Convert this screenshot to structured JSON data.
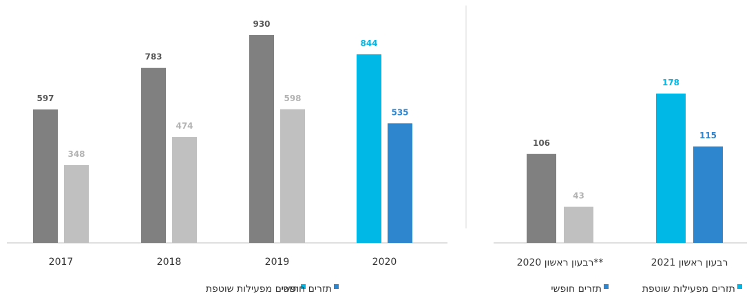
{
  "colors": {
    "dark_gray": "#808080",
    "light_gray": "#c0c0c0",
    "cyan": "#00b8e6",
    "blue": "#2e86cf",
    "axis": "#bfbfbf",
    "divider": "#d9d9d9",
    "label_dark": "#595959",
    "label_light": "#b3b3b3"
  },
  "chart_data": [
    {
      "type": "bar",
      "categories": [
        "2017",
        "2018",
        "2019",
        "2020"
      ],
      "series": [
        {
          "values": [
            597,
            783,
            930,
            844
          ]
        },
        {
          "values": [
            348,
            474,
            598,
            535
          ]
        }
      ],
      "ylim": [
        0,
        1000
      ],
      "grid": false,
      "legend": {
        "position": "bottom",
        "entries": [
          {
            "label": "תזרים מפעילות שוטפת",
            "color": "#00b8e6"
          },
          {
            "label": "תזרים חופשי",
            "color": "#2e86cf"
          }
        ]
      },
      "highlighted_category": "2020"
    },
    {
      "type": "bar",
      "categories": [
        "רבעון ראשון 2021",
        "רבעון ראשון 2020**"
      ],
      "series": [
        {
          "values": [
            178,
            106
          ]
        },
        {
          "values": [
            115,
            43
          ]
        }
      ],
      "ylim": [
        0,
        260
      ],
      "grid": false,
      "legend": {
        "position": "bottom",
        "entries": [
          {
            "label": "תזרים מפעילות שוטפת",
            "color": "#00b8e6"
          },
          {
            "label": "תזרים חופשי",
            "color": "#2e86cf"
          }
        ]
      },
      "highlighted_category": "רבעון ראשון 2021"
    }
  ]
}
